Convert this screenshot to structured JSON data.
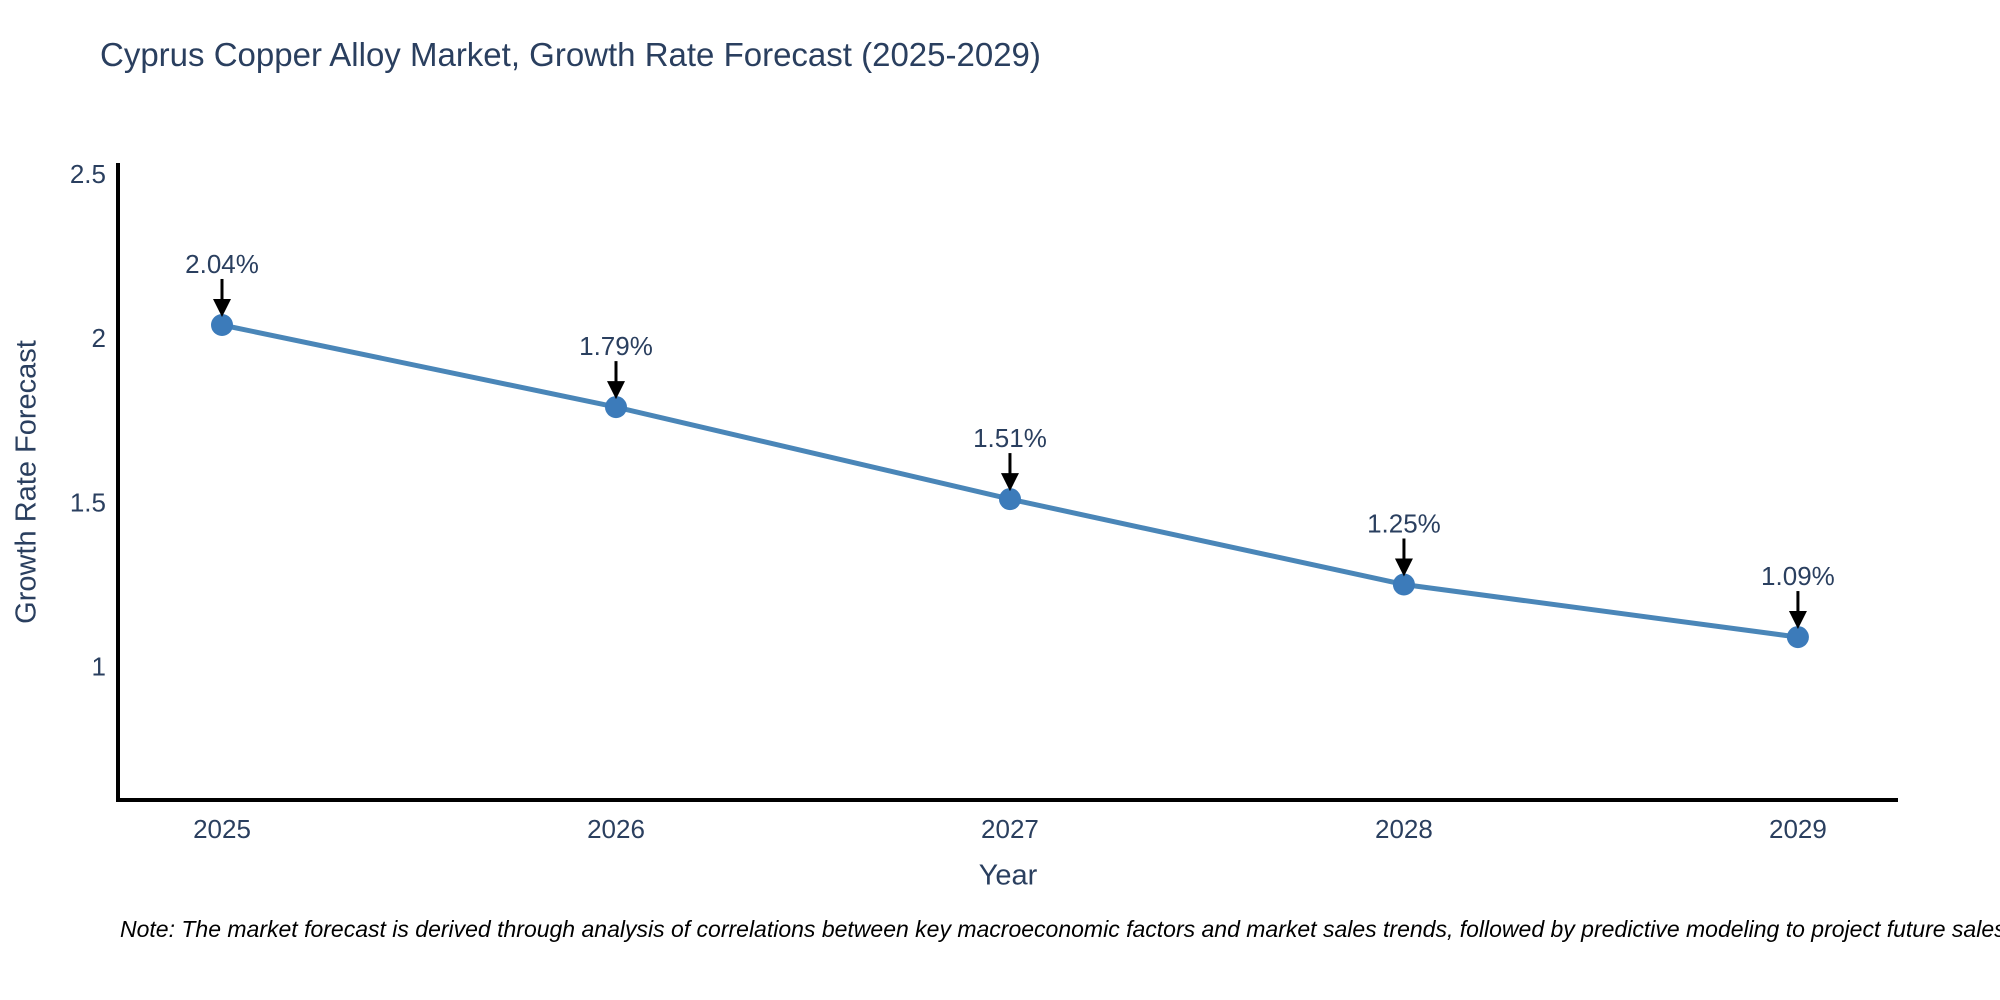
{
  "title": "Cyprus Copper Alloy Market, Growth Rate Forecast (2025-2029)",
  "note": "Note: The market forecast is derived through analysis of correlations between key macroeconomic factors and market sales trends, followed by predictive modeling to project future sales",
  "chart_data": {
    "type": "line",
    "title": "Cyprus Copper Alloy Market, Growth Rate Forecast (2025-2029)",
    "xlabel": "Year",
    "ylabel": "Growth Rate Forecast",
    "x": [
      2025,
      2026,
      2027,
      2028,
      2029
    ],
    "values": [
      2.04,
      1.79,
      1.51,
      1.25,
      1.09
    ],
    "point_labels": [
      "2.04%",
      "1.79%",
      "1.51%",
      "1.25%",
      "1.09%"
    ],
    "xticks": [
      2025,
      2026,
      2027,
      2028,
      2029
    ],
    "xtick_labels": [
      "2025",
      "2026",
      "2027",
      "2028",
      "2029"
    ],
    "yticks": [
      1,
      1.5,
      2,
      2.5
    ],
    "ytick_labels": [
      "1",
      "1.5",
      "2",
      "2.5"
    ],
    "xlim": [
      2024.736,
      2029.254
    ],
    "ylim": [
      0.594,
      2.527
    ],
    "grid": false,
    "legend_position": "none",
    "colors": {
      "line": "#4a86b8",
      "marker": "#3c7bba",
      "axis_line": "#000000",
      "text": "#2a3f5f",
      "annotation_arrow": "#000000",
      "note_text": "#000000",
      "background": "#ffffff"
    }
  }
}
